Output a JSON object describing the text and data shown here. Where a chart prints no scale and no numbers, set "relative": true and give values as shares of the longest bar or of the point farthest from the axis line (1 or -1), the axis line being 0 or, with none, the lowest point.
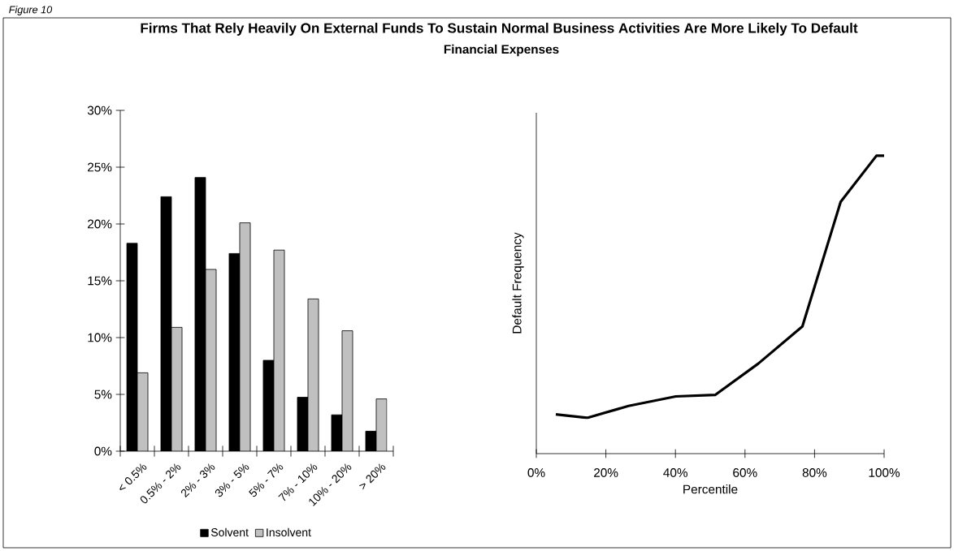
{
  "chart_data": [
    {
      "type": "bar",
      "title": "Firms That Rely Heavily On External Funds To Sustain Normal Business Activities Are More Likely To Default",
      "annotations": [
        "Figure 10"
      ],
      "categories": [
        "< 0.5%",
        "0.5% - 2%",
        "2% - 3%",
        "3% - 5%",
        "5% - 7%",
        "7% - 10%",
        "10% - 20%",
        "> 20%"
      ],
      "series": [
        {
          "name": "Solvent",
          "color": "#000000",
          "values": [
            18.3,
            22.4,
            24.1,
            17.4,
            8.0,
            4.75,
            3.2,
            1.76
          ]
        },
        {
          "name": "Insolvent",
          "color": "#c0c0c0",
          "values": [
            6.9,
            10.9,
            16.0,
            20.1,
            17.7,
            13.4,
            10.6,
            4.6
          ]
        }
      ],
      "ylim": [
        0,
        30
      ],
      "yticks": [
        {
          "value": 0,
          "label": "0%"
        },
        {
          "value": 5,
          "label": "5%"
        },
        {
          "value": 10,
          "label": "10%"
        },
        {
          "value": 15,
          "label": "15%"
        },
        {
          "value": 20,
          "label": "20%"
        },
        {
          "value": 25,
          "label": "25%"
        },
        {
          "value": 30,
          "label": "30%"
        }
      ],
      "legend": "bottom",
      "grid": false
    },
    {
      "type": "line",
      "subtitle": "Financial Expenses",
      "xlabel": "Percentile",
      "ylabel": "Default Frequency",
      "relative": true,
      "x": [
        5.6,
        14.6,
        26.5,
        40.1,
        51.4,
        63.8,
        76.5,
        87.5,
        97.8,
        100
      ],
      "series": [
        {
          "color": "#000000",
          "values": [
            0.132,
            0.12,
            0.16,
            0.192,
            0.197,
            0.302,
            0.427,
            0.845,
            1,
            1
          ]
        }
      ],
      "xlim": [
        0,
        100
      ],
      "xticks": [
        {
          "value": 0,
          "label": "0%"
        },
        {
          "value": 20,
          "label": "20%"
        },
        {
          "value": 40,
          "label": "40%"
        },
        {
          "value": 60,
          "label": "60%"
        },
        {
          "value": 80,
          "label": "80%"
        },
        {
          "value": 100,
          "label": "100%"
        }
      ],
      "grid": false
    }
  ]
}
